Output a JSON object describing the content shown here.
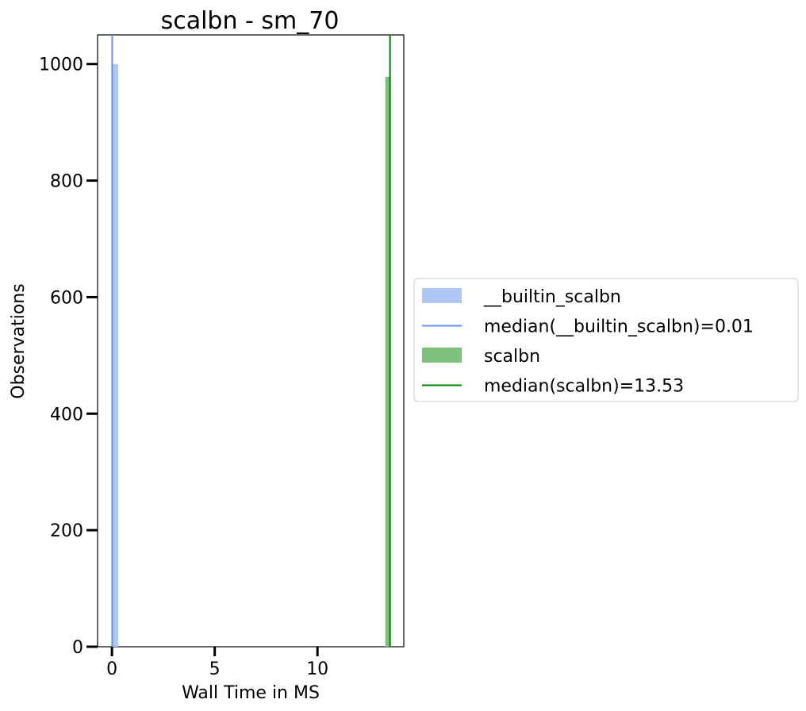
{
  "chart_data": {
    "type": "bar",
    "title": "scalbn - sm_70",
    "xlabel": "Wall Time in MS",
    "ylabel": "Observations",
    "xlim": [
      -0.7,
      14.2
    ],
    "ylim": [
      0,
      1050
    ],
    "xticks": [
      0,
      5,
      10
    ],
    "yticks": [
      0,
      200,
      400,
      600,
      800,
      1000
    ],
    "grid": false,
    "legend_position": "right",
    "series": [
      {
        "name": "__builtin_scalbn",
        "kind": "histogram",
        "color": "#aec7f4",
        "bins": [
          {
            "x0": 0.0,
            "x1": 0.3,
            "count": 1000
          }
        ]
      },
      {
        "name": "scalbn",
        "kind": "histogram",
        "color": "#7cc07c",
        "bins": [
          {
            "x0": 13.3,
            "x1": 13.56,
            "count": 978
          }
        ]
      }
    ],
    "median_lines": [
      {
        "name": "median(__builtin_scalbn)=0.01",
        "x": 0.01,
        "color": "#6495ed"
      },
      {
        "name": "median(scalbn)=13.53",
        "x": 13.53,
        "color": "#008000"
      }
    ]
  }
}
